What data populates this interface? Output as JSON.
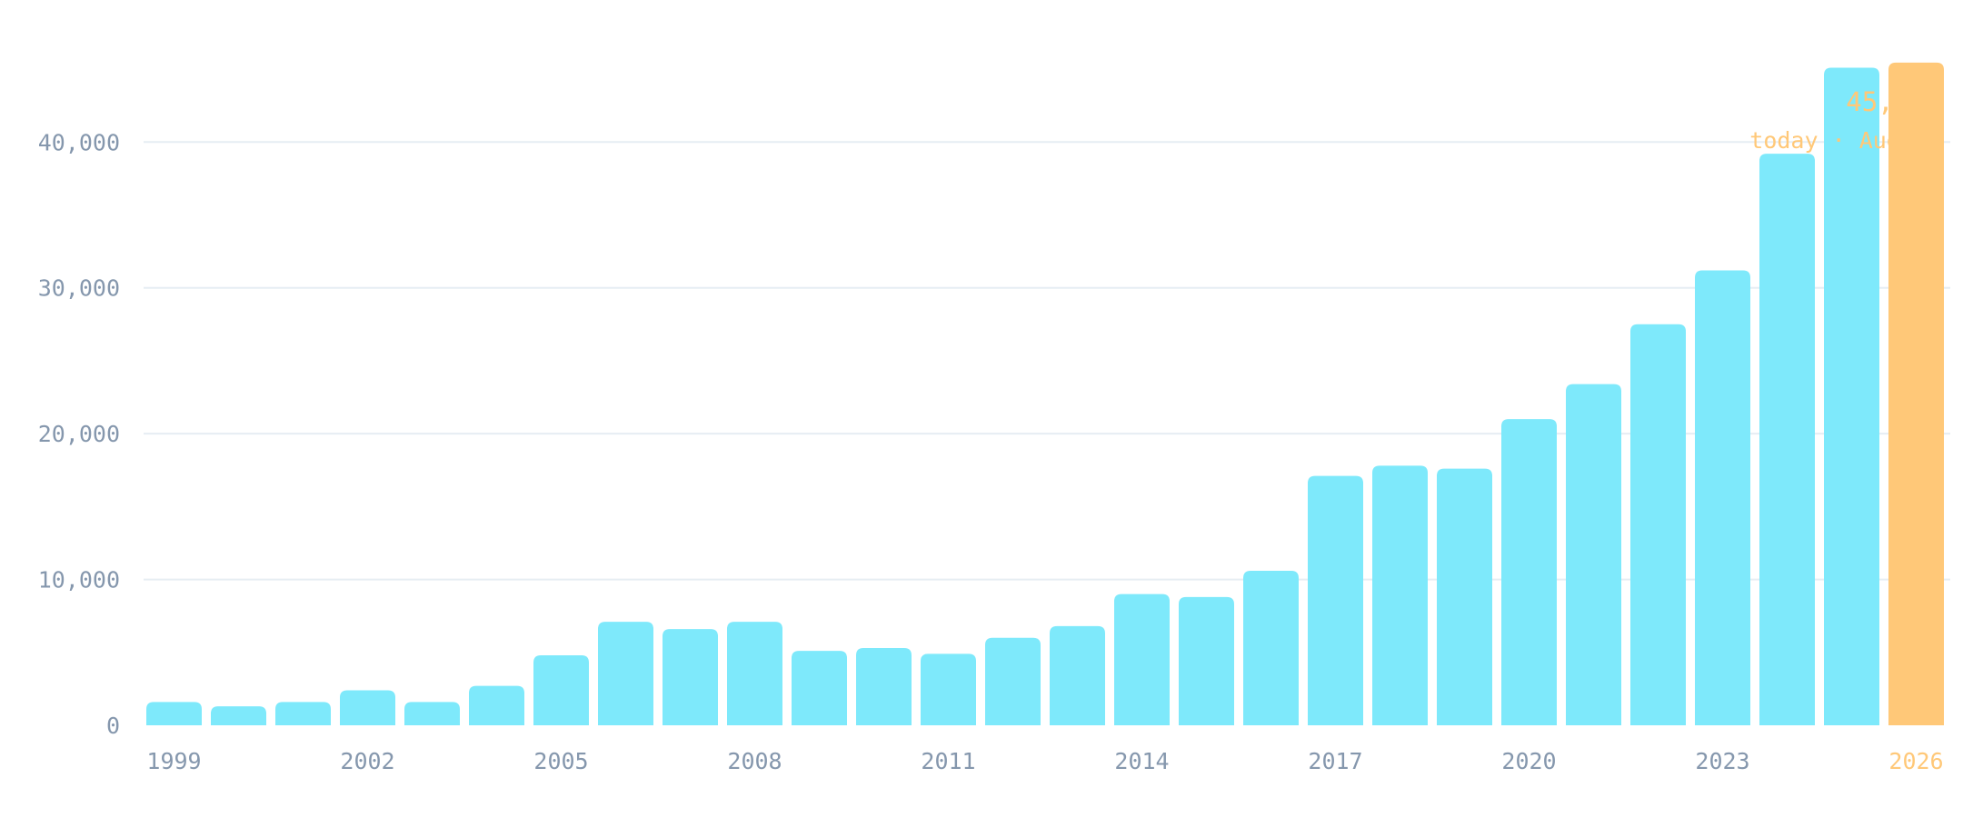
{
  "chart_data": {
    "type": "bar",
    "categories": [
      "1999",
      "2000",
      "2001",
      "2002",
      "2003",
      "2004",
      "2005",
      "2006",
      "2007",
      "2008",
      "2009",
      "2010",
      "2011",
      "2012",
      "2013",
      "2014",
      "2015",
      "2016",
      "2017",
      "2018",
      "2019",
      "2020",
      "2021",
      "2022",
      "2023",
      "2024",
      "2025",
      "2026"
    ],
    "values": [
      1600,
      1300,
      1600,
      2400,
      1600,
      2700,
      4800,
      7100,
      6600,
      7100,
      5100,
      5300,
      4900,
      6000,
      6800,
      9000,
      8800,
      10600,
      17100,
      17800,
      17600,
      21000,
      23400,
      27500,
      31200,
      39200,
      45100,
      45449
    ],
    "x_tick_labels": [
      "1999",
      "2002",
      "2005",
      "2008",
      "2011",
      "2014",
      "2017",
      "2020",
      "2023",
      "2026"
    ],
    "y_ticks": [
      0,
      10000,
      20000,
      30000,
      40000
    ],
    "y_tick_labels": [
      "0",
      "10,000",
      "20,000",
      "30,000",
      "40,000"
    ],
    "ylim": [
      0,
      46000
    ],
    "grid": true,
    "title": "",
    "xlabel": "",
    "ylabel": "",
    "highlight": {
      "category": "2026",
      "value_label": "45,449",
      "date_label": "today · Aug 18"
    },
    "colors": {
      "bar": "#7ee9fb",
      "highlight": "#ffc878",
      "axis_text": "#8597ad",
      "grid": "#e6edf3"
    }
  }
}
